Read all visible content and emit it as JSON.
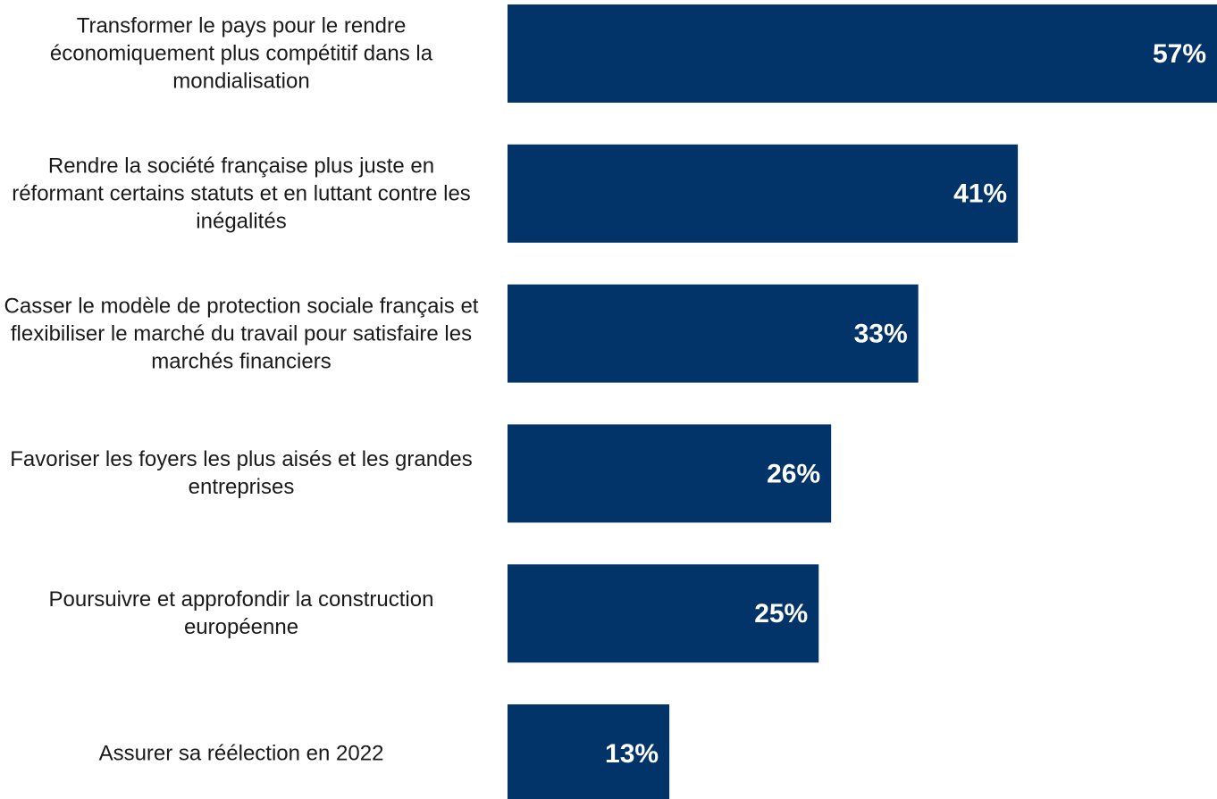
{
  "chart_data": {
    "type": "bar",
    "orientation": "horizontal",
    "categories": [
      "Transformer le pays pour le rendre économiquement plus compétitif dans la mondialisation",
      "Rendre la société française plus juste en réformant certains statuts et en luttant contre les inégalités",
      "Casser le modèle de protection sociale français et flexibiliser le marché du travail pour satisfaire les marchés financiers",
      "Favoriser les foyers les plus aisés et les grandes entreprises",
      "Poursuivre et approfondir la construction européenne",
      "Assurer sa réélection en 2022"
    ],
    "values": [
      57,
      41,
      33,
      26,
      25,
      13
    ],
    "value_labels": [
      "57%",
      "41%",
      "33%",
      "26%",
      "25%",
      "13%"
    ],
    "color": "#02346a"
  }
}
